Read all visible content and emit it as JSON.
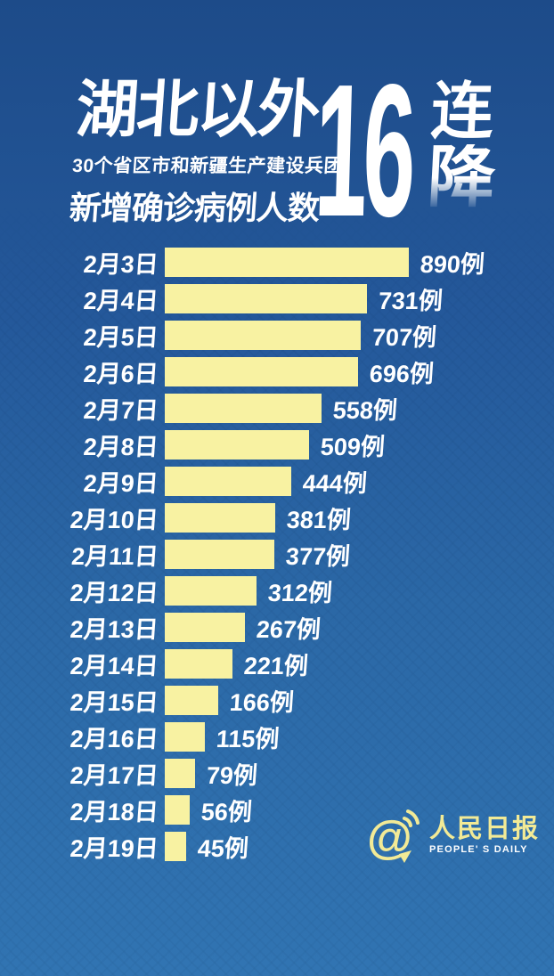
{
  "poster": {
    "title": "湖北以外",
    "subtitle_line1": "30个省区市和新疆生产建设兵团",
    "subtitle_line2": "新增确诊病例人数",
    "streak_number": "16",
    "streak_char1": "连",
    "streak_char2": "降"
  },
  "chart_data": {
    "type": "bar",
    "orientation": "horizontal",
    "title": "湖北以外 30个省区市和新疆生产建设兵团 新增确诊病例人数",
    "annotation": "16连降",
    "unit": "例",
    "categories": [
      "2月3日",
      "2月4日",
      "2月5日",
      "2月6日",
      "2月7日",
      "2月8日",
      "2月9日",
      "2月10日",
      "2月11日",
      "2月12日",
      "2月13日",
      "2月14日",
      "2月15日",
      "2月16日",
      "2月17日",
      "2月18日",
      "2月19日"
    ],
    "values": [
      890,
      731,
      707,
      696,
      558,
      509,
      444,
      381,
      377,
      312,
      267,
      221,
      166,
      115,
      79,
      56,
      45
    ],
    "labels": [
      "890例",
      "731例",
      "707例",
      "696例",
      "558例",
      "509例",
      "444例",
      "381例",
      "377例",
      "312例",
      "267例",
      "221例",
      "166例",
      "115例",
      "79例",
      "56例",
      "45例"
    ],
    "xlim": [
      0,
      890
    ],
    "grid": false,
    "legend": "none",
    "bar_color": "#f8f2a2",
    "label_color": "#ffffff"
  },
  "logo": {
    "at_symbol": "@",
    "name_cn": "人民日报",
    "name_en": "PEOPLE' S DAILY"
  },
  "colors": {
    "background_top": "#1d4b89",
    "background_bottom": "#3174b2",
    "bar": "#f8f2a2",
    "text": "#ffffff",
    "logo_yellow": "#f2ea96"
  }
}
